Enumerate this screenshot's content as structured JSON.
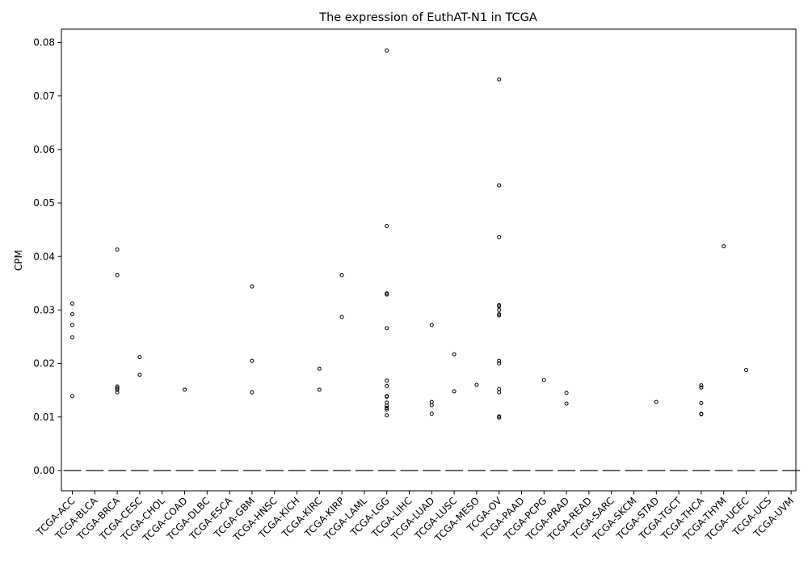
{
  "chart_data": {
    "type": "box",
    "title": "The expression of EuthAT-N1 in TCGA",
    "xlabel": "",
    "ylabel": "CPM",
    "ylim": [
      -0.0038,
      0.0825
    ],
    "yticks": [
      0.0,
      0.01,
      0.02,
      0.03,
      0.04,
      0.05,
      0.06,
      0.07,
      0.08
    ],
    "ytick_labels": [
      "0.00",
      "0.01",
      "0.02",
      "0.03",
      "0.04",
      "0.05",
      "0.06",
      "0.07",
      "0.08"
    ],
    "grid": false,
    "box_color": "#4a4a4a",
    "categories": [
      "TCGA-ACC",
      "TCGA-BLCA",
      "TCGA-BRCA",
      "TCGA-CESC",
      "TCGA-CHOL",
      "TCGA-COAD",
      "TCGA-DLBC",
      "TCGA-ESCA",
      "TCGA-GBM",
      "TCGA-HNSC",
      "TCGA-KICH",
      "TCGA-KIRC",
      "TCGA-KIRP",
      "TCGA-LAML",
      "TCGA-LGG",
      "TCGA-LIHC",
      "TCGA-LUAD",
      "TCGA-LUSC",
      "TCGA-MESO",
      "TCGA-OV",
      "TCGA-PAAD",
      "TCGA-PCPG",
      "TCGA-PRAD",
      "TCGA-READ",
      "TCGA-SARC",
      "TCGA-SKCM",
      "TCGA-STAD",
      "TCGA-TGCT",
      "TCGA-THCA",
      "TCGA-THYM",
      "TCGA-UCEC",
      "TCGA-UCS",
      "TCGA-UVM"
    ],
    "median": [
      0,
      0,
      0,
      0,
      0,
      0,
      0,
      0,
      0,
      0,
      0,
      0,
      0,
      0,
      0,
      0,
      0,
      0,
      0,
      0,
      0,
      0,
      0,
      0,
      0,
      0,
      0,
      0,
      0,
      0,
      0,
      0,
      0
    ],
    "outliers": [
      [
        0.0312,
        0.0292,
        0.0272,
        0.0249,
        0.0139
      ],
      [],
      [
        0.0413,
        0.0365,
        0.0157,
        0.0154,
        0.0151,
        0.0146
      ],
      [
        0.0212,
        0.0179
      ],
      [],
      [
        0.0151
      ],
      [],
      [],
      [
        0.0344,
        0.0205,
        0.0146
      ],
      [],
      [],
      [
        0.019,
        0.0151
      ],
      [
        0.0365,
        0.0287
      ],
      [],
      [
        0.0785,
        0.0457,
        0.0331,
        0.0329,
        0.0266,
        0.0168,
        0.0158,
        0.0139,
        0.0138,
        0.0127,
        0.0121,
        0.0117,
        0.0114,
        0.0103
      ],
      [],
      [
        0.0272,
        0.0128,
        0.0122,
        0.0106
      ],
      [
        0.0217,
        0.0148
      ],
      [
        0.016
      ],
      [
        0.0731,
        0.0533,
        0.0436,
        0.0309,
        0.0307,
        0.03,
        0.0292,
        0.029,
        0.0205,
        0.02,
        0.0152,
        0.0146,
        0.0101,
        0.0099
      ],
      [],
      [
        0.0169
      ],
      [
        0.0145,
        0.0125
      ],
      [],
      [],
      [],
      [
        0.0128
      ],
      [],
      [
        0.0159,
        0.0155,
        0.0126,
        0.0106,
        0.0105
      ],
      [
        0.0419
      ],
      [
        0.0188
      ],
      [],
      []
    ]
  }
}
